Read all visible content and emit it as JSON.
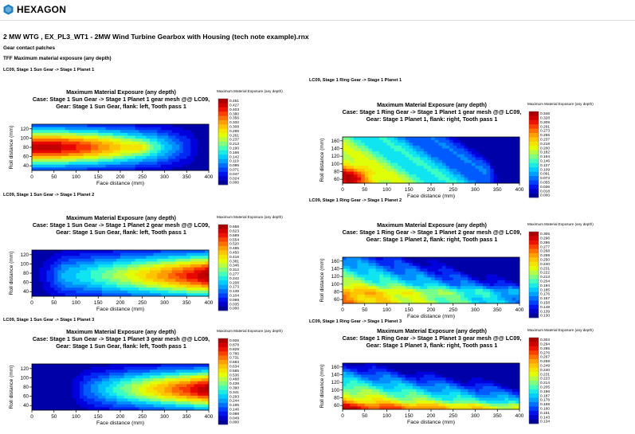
{
  "header": {
    "brand": "HEXAGON",
    "document_title": "2 MW WTG , EX_PL3_WT1 - 2MW Wind Turbine Gearbox with Housing (tech note example).rnx",
    "section": "Gear contact patches",
    "subsection": "TFF Maximum material exposure (any depth)"
  },
  "chart_data": [
    {
      "type": "heatmap",
      "label": "LC09, Stage 1 Sun Gear -> Stage 1 Planet 1",
      "title": "Maximum Material Exposure (any depth)",
      "subtitle1": "Case: Stage 1 Sun Gear -> Stage 1 Planet 1 gear mesh @@ LC09,",
      "subtitle2": "Gear: Stage 1 Sun Gear, flank: left, Tooth pass 1",
      "colorbar_title": "Maximum Material Exposure (any depth)",
      "colorbar_ticks": [
        "0.451",
        "0.427",
        "0.403",
        "0.380",
        "0.356",
        "0.332",
        "0.308",
        "0.285",
        "0.261",
        "0.237",
        "0.213",
        "0.190",
        "0.166",
        "0.142",
        "0.119",
        "0.095",
        "0.071",
        "0.047",
        "0.024",
        "0.000"
      ],
      "xlabel": "Face distance (mm)",
      "ylabel": "Roll distance (mm)",
      "xticks": [
        "0",
        "50",
        "100",
        "150",
        "200",
        "250",
        "300",
        "350",
        "400"
      ],
      "yticks": [
        "40",
        "60",
        "80",
        "100",
        "120"
      ],
      "xlim": [
        0,
        400
      ],
      "ylim": [
        40,
        125
      ],
      "pattern": "left"
    },
    {
      "type": "heatmap",
      "label": "LC09, Stage 1 Ring Gear -> Stage 1 Planet 1",
      "title": "Maximum Material Exposure (any depth)",
      "subtitle1": "Case: Stage 1 Ring Gear -> Stage 1 Planet 1 gear mesh @@ LC09,",
      "subtitle2": "Gear: Stage 1 Planet 1, flank: right, Tooth pass 1",
      "colorbar_title": "Maximum Material Exposure (any depth)",
      "colorbar_ticks": [
        "0.346",
        "0.328",
        "0.309",
        "0.291",
        "0.273",
        "0.255",
        "0.237",
        "0.218",
        "0.200",
        "0.182",
        "0.164",
        "0.146",
        "0.127",
        "0.109",
        "0.091",
        "0.073",
        "0.055",
        "0.036",
        "0.018",
        "0.000"
      ],
      "xlabel": "Face distance (mm)",
      "ylabel": "Roll distance (mm)",
      "xticks": [
        "0",
        "50",
        "100",
        "150",
        "200",
        "250",
        "300",
        "350",
        "400"
      ],
      "yticks": [
        "60",
        "80",
        "100",
        "120",
        "140",
        "160"
      ],
      "xlim": [
        0,
        400
      ],
      "ylim": [
        60,
        170
      ],
      "pattern": "ring1"
    },
    {
      "type": "heatmap",
      "label": "LC09, Stage 1 Sun Gear -> Stage 1 Planet 2",
      "title": "Maximum Material Exposure (any depth)",
      "subtitle1": "Case: Stage 1 Sun Gear -> Stage 1 Planet 2 gear mesh @@ LC09,",
      "subtitle2": "Gear: Stage 1 Sun Gear, flank: left, Tooth pass 1",
      "colorbar_title": "Maximum Material Exposure (any depth)",
      "colorbar_ticks": [
        "0.658",
        "0.623",
        "0.589",
        "0.554",
        "0.520",
        "0.485",
        "0.450",
        "0.416",
        "0.381",
        "0.346",
        "0.312",
        "0.277",
        "0.242",
        "0.208",
        "0.173",
        "0.139",
        "0.104",
        "0.069",
        "0.035",
        "0.000"
      ],
      "xlabel": "Face distance (mm)",
      "ylabel": "Roll distance (mm)",
      "xticks": [
        "0",
        "50",
        "100",
        "150",
        "200",
        "250",
        "300",
        "350",
        "400"
      ],
      "yticks": [
        "40",
        "60",
        "80",
        "100",
        "120"
      ],
      "xlim": [
        0,
        400
      ],
      "ylim": [
        40,
        125
      ],
      "pattern": "right"
    },
    {
      "type": "heatmap",
      "label": "LC09, Stage 1 Ring Gear -> Stage 1 Planet 2",
      "title": "Maximum Material Exposure (any depth)",
      "subtitle1": "Case: Stage 1 Ring Gear -> Stage 1 Planet 2 gear mesh @@ LC09,",
      "subtitle2": "Gear: Stage 1 Planet 2, flank: right, Tooth pass 1",
      "colorbar_title": "Maximum Material Exposure (any depth)",
      "colorbar_ticks": [
        "0.305",
        "0.296",
        "0.286",
        "0.277",
        "0.268",
        "0.259",
        "0.250",
        "0.240",
        "0.231",
        "0.222",
        "0.213",
        "0.204",
        "0.194",
        "0.185",
        "0.176",
        "0.167",
        "0.158",
        "0.148",
        "0.139",
        "0.130"
      ],
      "xlabel": "Face distance (mm)",
      "ylabel": "Roll distance (mm)",
      "xticks": [
        "0",
        "50",
        "100",
        "150",
        "200",
        "250",
        "300",
        "350",
        "400"
      ],
      "yticks": [
        "60",
        "80",
        "100",
        "120",
        "140",
        "160"
      ],
      "xlim": [
        0,
        400
      ],
      "ylim": [
        60,
        170
      ],
      "pattern": "ring2"
    },
    {
      "type": "heatmap",
      "label": "LC09, Stage 1 Sun Gear -> Stage 1 Planet 3",
      "title": "Maximum Material Exposure (any depth)",
      "subtitle1": "Case: Stage 1 Sun Gear -> Stage 1 Planet 3 gear mesh @@ LC09,",
      "subtitle2": "Gear: Stage 1 Sun Gear, flank: left, Tooth pass 1",
      "colorbar_title": "Maximum Material Exposure (any depth)",
      "colorbar_ticks": [
        "0.926",
        "0.878",
        "0.829",
        "0.780",
        "0.731",
        "0.683",
        "0.634",
        "0.585",
        "0.536",
        "0.488",
        "0.439",
        "0.390",
        "0.341",
        "0.293",
        "0.244",
        "0.195",
        "0.146",
        "0.098",
        "0.049",
        "0.000"
      ],
      "xlabel": "Face distance (mm)",
      "ylabel": "Roll distance (mm)",
      "xticks": [
        "0",
        "50",
        "100",
        "150",
        "200",
        "250",
        "300",
        "350",
        "400"
      ],
      "yticks": [
        "40",
        "60",
        "80",
        "100",
        "120"
      ],
      "xlim": [
        0,
        400
      ],
      "ylim": [
        40,
        125
      ],
      "pattern": "right3"
    },
    {
      "type": "heatmap",
      "label": "LC09, Stage 1 Ring Gear -> Stage 1 Planet 3",
      "title": "Maximum Material Exposure (any depth)",
      "subtitle1": "Case: Stage 1 Ring Gear -> Stage 1 Planet 3 gear mesh @@ LC09,",
      "subtitle2": "Gear: Stage 1 Planet 3, flank: right, Tooth pass 1",
      "colorbar_title": "Maximum Material Exposure (any depth)",
      "colorbar_ticks": [
        "0.303",
        "0.294",
        "0.285",
        "0.276",
        "0.267",
        "0.259",
        "0.249",
        "0.240",
        "0.231",
        "0.223",
        "0.214",
        "0.205",
        "0.196",
        "0.187",
        "0.178",
        "0.169",
        "0.160",
        "0.151",
        "0.143",
        "0.134"
      ],
      "xlabel": "Face distance (mm)",
      "ylabel": "Roll distance (mm)",
      "xticks": [
        "0",
        "50",
        "100",
        "150",
        "200",
        "250",
        "300",
        "350",
        "400"
      ],
      "yticks": [
        "60",
        "80",
        "100",
        "120",
        "140",
        "160"
      ],
      "xlim": [
        0,
        400
      ],
      "ylim": [
        60,
        170
      ],
      "pattern": "ring3"
    }
  ]
}
